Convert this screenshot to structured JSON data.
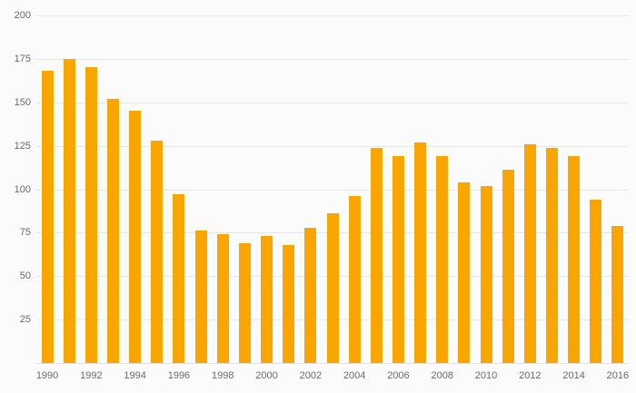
{
  "chart_data": {
    "type": "bar",
    "title": "",
    "xlabel": "",
    "ylabel": "",
    "categories": [
      "1990",
      "1991",
      "1992",
      "1993",
      "1994",
      "1995",
      "1996",
      "1997",
      "1998",
      "1999",
      "2000",
      "2001",
      "2002",
      "2003",
      "2004",
      "2005",
      "2006",
      "2007",
      "2008",
      "2009",
      "2010",
      "2011",
      "2012",
      "2013",
      "2014",
      "2015",
      "2016"
    ],
    "values": [
      168,
      175,
      170,
      152,
      145,
      128,
      97,
      76,
      74,
      69,
      73,
      68,
      78,
      86,
      96,
      124,
      119,
      127,
      119,
      104,
      102,
      111,
      126,
      124,
      119,
      94,
      79
    ],
    "ylim": [
      0,
      200
    ],
    "y_ticks": [
      25,
      50,
      75,
      100,
      125,
      150,
      175,
      200
    ],
    "x_tick_labels": [
      "1990",
      "1992",
      "1994",
      "1996",
      "1998",
      "2000",
      "2002",
      "2004",
      "2006",
      "2008",
      "2010",
      "2012",
      "2014",
      "2016"
    ],
    "x_tick_every": 2,
    "grid": true,
    "legend_position": "none",
    "colors": {
      "bar": "#F9A602",
      "grid": "#e6e6e6",
      "baseline": "#e0e0e0",
      "background": "#fbfbfb",
      "label": "#6a6a6a"
    }
  }
}
